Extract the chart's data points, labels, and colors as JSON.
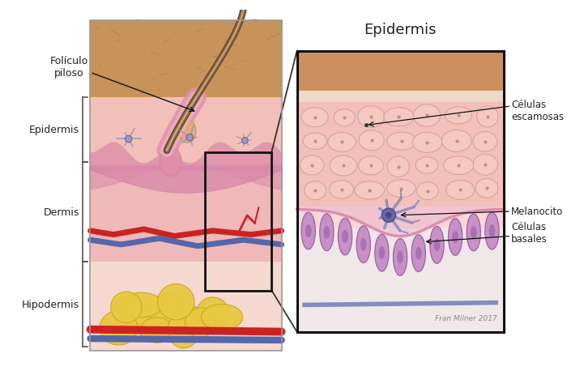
{
  "bg_color": "#ffffff",
  "labels": {
    "foliculo": "Folículo\npiloso",
    "epidermis_left": "Epidermis",
    "dermis": "Dermis",
    "hipodermis": "Hipodermis",
    "epidermis_title": "Epidermis",
    "celulas_escamosas": "Células\nescamosas",
    "melanocito": "Melanocito",
    "celulas_basales": "Células\nbasales",
    "credit": "Fran Milner 2017"
  },
  "colors": {
    "skin_top": "#c8935a",
    "skin_top_dark": "#a87040",
    "epidermis_bg": "#f2c0b8",
    "dermis_bg": "#f0b8b8",
    "hypodermis_bg": "#f5d8d0",
    "dermis_fibrous": "#e8c8c8",
    "fat_yellow": "#e8c840",
    "fat_border": "#c8a820",
    "blood_red": "#cc2222",
    "blood_blue": "#5566aa",
    "hair_outer": "#8b6545",
    "hair_inner": "#c8a880",
    "hair_core": "#6b4525",
    "follicle_outer": "#e090a8",
    "follicle_inner": "#f0b8c8",
    "melanocyte": "#8888b8",
    "melanocyte_body": "#6868a0",
    "basal_cell": "#c890c8",
    "basal_border": "#a060a0",
    "squamous_cell": "#f5c0c0",
    "squamous_border": "#d89898",
    "sebaceous": "#e8a870",
    "bracket": "#555555",
    "zoom_box": "#111111",
    "zoom_top": "#c89060",
    "zoom_epi": "#f0c0b8",
    "zoom_dermis": "#f8d0d0",
    "zoom_white": "#f8f0f0",
    "wavy_pink": "#d888a8"
  }
}
